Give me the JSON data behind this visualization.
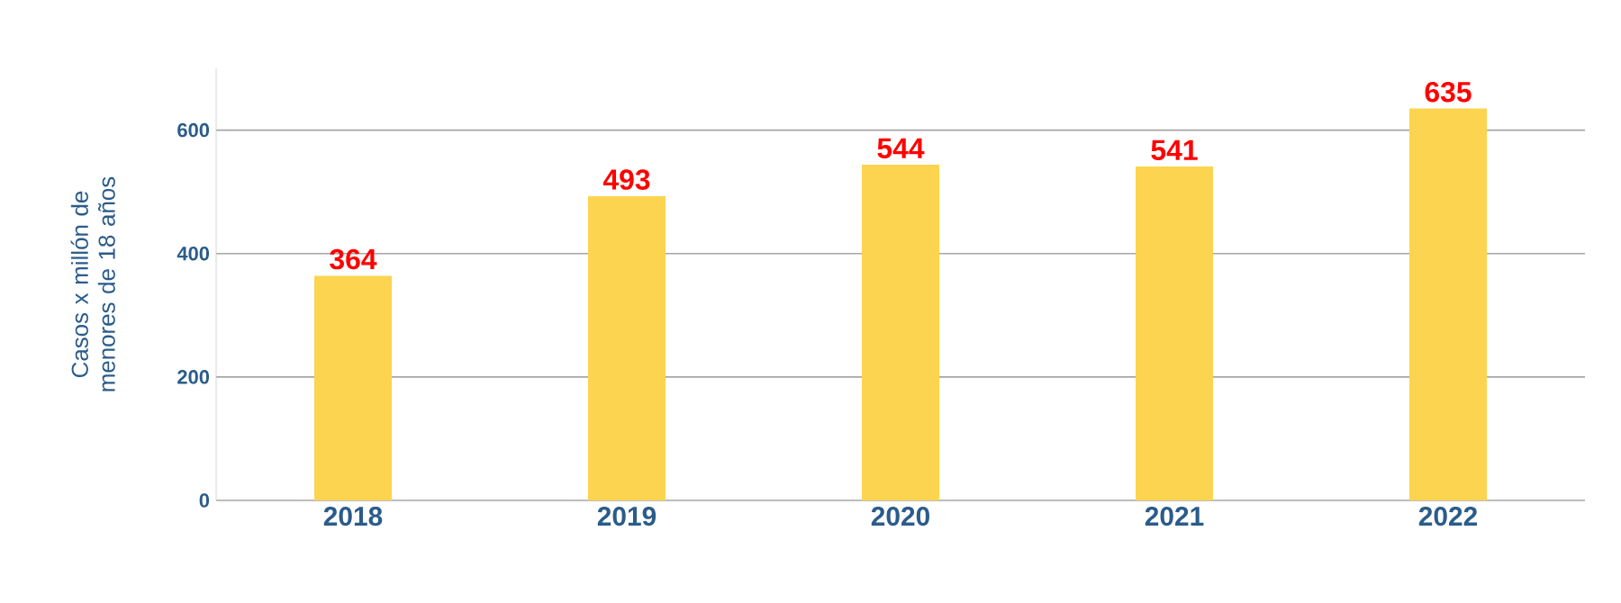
{
  "chart_data": {
    "type": "bar",
    "ylabel": "Casos x millón de menores de 18 años",
    "categories": [
      "2018",
      "2019",
      "2020",
      "2021",
      "2022"
    ],
    "values": [
      364,
      493,
      544,
      541,
      635
    ],
    "color": "#fcd44f",
    "ylim": [
      0,
      700
    ],
    "yticks": [
      0,
      200,
      400,
      600
    ],
    "grid": "y",
    "data_labels": true
  }
}
